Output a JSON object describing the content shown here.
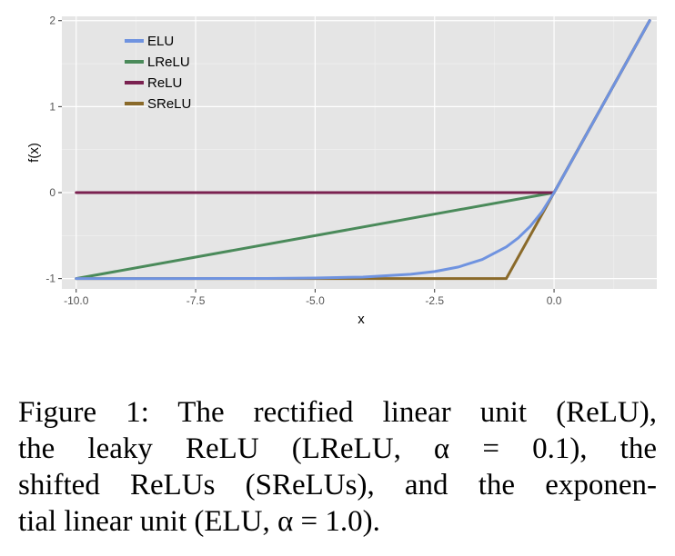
{
  "chart_data": {
    "type": "line",
    "title": "",
    "xlabel": "x",
    "ylabel": "f(x)",
    "xlim": [
      -10.0,
      2.0
    ],
    "ylim": [
      -1,
      2
    ],
    "x_ticks": [
      -10.0,
      -7.5,
      -5.0,
      -2.5,
      0.0
    ],
    "x_tick_labels": [
      "-10.0",
      "-7.5",
      "-5.0",
      "-2.5",
      "0.0"
    ],
    "y_ticks": [
      -1,
      0,
      1,
      2
    ],
    "y_tick_labels": [
      "-1",
      "0",
      "1",
      "2"
    ],
    "grid": true,
    "background": "#e5e5e5",
    "legend_position": "top-left",
    "series": [
      {
        "name": "ELU",
        "color": "#6f93e0",
        "x": [
          -10,
          -8,
          -6,
          -5,
          -4,
          -3,
          -2.5,
          -2,
          -1.5,
          -1,
          -0.75,
          -0.5,
          -0.25,
          0,
          0.5,
          1,
          1.5,
          2
        ],
        "values": [
          -1.0,
          -1.0,
          -0.998,
          -0.993,
          -0.982,
          -0.95,
          -0.918,
          -0.865,
          -0.777,
          -0.632,
          -0.528,
          -0.393,
          -0.221,
          0,
          0.5,
          1,
          1.5,
          2
        ]
      },
      {
        "name": "LReLU",
        "color": "#4a8a5a",
        "x": [
          -10,
          0,
          2
        ],
        "values": [
          -1.0,
          0,
          2
        ]
      },
      {
        "name": "ReLU",
        "color": "#7a2150",
        "x": [
          -10,
          0,
          2
        ],
        "values": [
          0,
          0,
          2
        ]
      },
      {
        "name": "SReLU",
        "color": "#8a6a2a",
        "x": [
          -10,
          -1,
          2
        ],
        "values": [
          -1,
          -1,
          2
        ]
      }
    ]
  },
  "caption": {
    "lines": [
      "Figure 1: The rectified linear unit (ReLU),",
      "the leaky ReLU (LReLU, α = 0.1), the",
      "shifted ReLUs (SReLUs), and the exponen-",
      "tial linear unit (ELU, α = 1.0)."
    ]
  }
}
